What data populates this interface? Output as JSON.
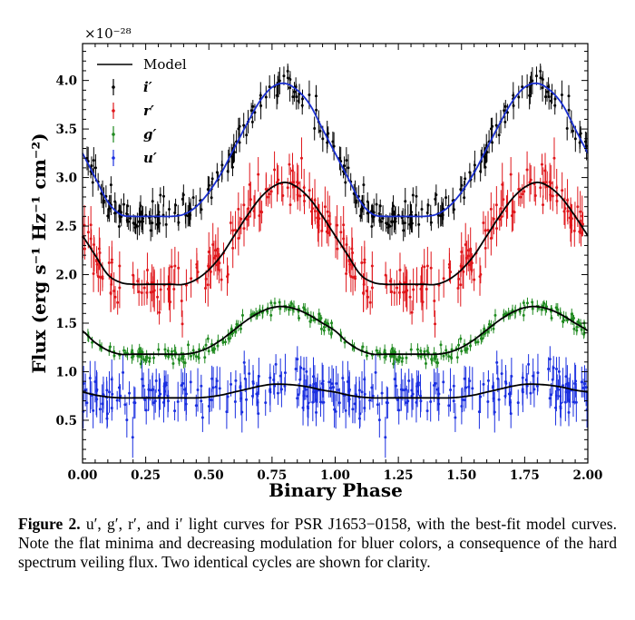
{
  "chart_data": {
    "type": "scatter",
    "title": "",
    "xlabel": "Binary Phase",
    "ylabel": "Flux (erg s⁻¹ Hz⁻¹ cm⁻²)",
    "y_scale_label": "×10⁻²⁸",
    "xlim": [
      0.0,
      2.0
    ],
    "ylim": [
      0.06,
      4.38
    ],
    "xticks": [
      "0.00",
      "0.25",
      "0.50",
      "0.75",
      "1.00",
      "1.25",
      "1.50",
      "1.75",
      "2.00"
    ],
    "yticks": [
      "0.5",
      "1.0",
      "1.5",
      "2.0",
      "2.5",
      "3.0",
      "3.5",
      "4.0"
    ],
    "grid": false,
    "legend_position": "top-left",
    "legend": [
      "Model",
      "i′",
      "r′",
      "g′",
      "u′"
    ],
    "cycles_shown": 2,
    "model_phase": [
      0,
      0.05,
      0.1,
      0.15,
      0.2,
      0.25,
      0.3,
      0.35,
      0.4,
      0.45,
      0.5,
      0.55,
      0.6,
      0.65,
      0.7,
      0.75,
      0.8,
      0.85,
      0.9,
      0.95,
      1.0
    ],
    "series": [
      {
        "name": "i′",
        "color": "#000000",
        "model_color": "#1a2fd0",
        "scatter": 0.1,
        "model": [
          3.25,
          3.0,
          2.75,
          2.62,
          2.6,
          2.6,
          2.6,
          2.6,
          2.62,
          2.7,
          2.85,
          3.05,
          3.3,
          3.55,
          3.78,
          3.93,
          3.97,
          3.9,
          3.75,
          3.5,
          3.25
        ]
      },
      {
        "name": "r′",
        "color": "#e0161b",
        "model_color": "#000000",
        "scatter": 0.15,
        "model": [
          2.4,
          2.2,
          2.0,
          1.92,
          1.9,
          1.9,
          1.9,
          1.9,
          1.9,
          1.95,
          2.05,
          2.2,
          2.4,
          2.6,
          2.78,
          2.9,
          2.95,
          2.9,
          2.78,
          2.6,
          2.4
        ]
      },
      {
        "name": "g′",
        "color": "#1f8a1f",
        "model_color": "#000000",
        "scatter": 0.045,
        "model": [
          1.42,
          1.3,
          1.22,
          1.18,
          1.18,
          1.18,
          1.18,
          1.18,
          1.18,
          1.2,
          1.25,
          1.33,
          1.43,
          1.53,
          1.61,
          1.66,
          1.67,
          1.64,
          1.58,
          1.5,
          1.42
        ]
      },
      {
        "name": "u′",
        "color": "#1a2fe0",
        "model_color": "#000000",
        "scatter": 0.15,
        "model": [
          0.79,
          0.76,
          0.74,
          0.73,
          0.73,
          0.73,
          0.73,
          0.73,
          0.73,
          0.73,
          0.74,
          0.76,
          0.79,
          0.82,
          0.85,
          0.87,
          0.87,
          0.86,
          0.84,
          0.81,
          0.79
        ]
      }
    ]
  },
  "caption": {
    "label": "Figure 2.",
    "text": " u′, g′, r′, and i′ light curves for PSR J1653−0158, with the best-fit model curves. Note the flat minima and decreasing modulation for bluer colors, a consequence of the hard spectrum veiling flux. Two identical cycles are shown for clarity."
  }
}
